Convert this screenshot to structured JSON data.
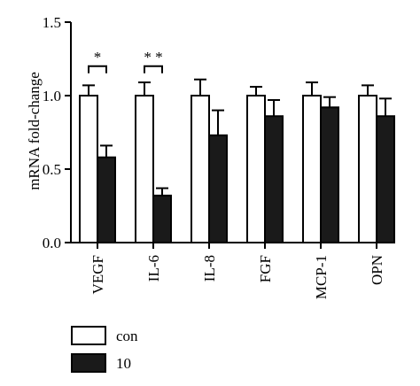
{
  "chart_data": {
    "type": "bar",
    "categories": [
      "VEGF",
      "IL-6",
      "IL-8",
      "FGF",
      "MCP-1",
      "OPN"
    ],
    "series": [
      {
        "name": "con",
        "color": "#ffffff",
        "values": [
          1.0,
          1.0,
          1.0,
          1.0,
          1.0,
          1.0
        ],
        "errors": [
          0.07,
          0.09,
          0.11,
          0.06,
          0.09,
          0.07
        ]
      },
      {
        "name": "10",
        "color": "#1a1a1a",
        "values": [
          0.58,
          0.32,
          0.73,
          0.86,
          0.92,
          0.86
        ],
        "errors": [
          0.08,
          0.05,
          0.17,
          0.11,
          0.07,
          0.12
        ]
      }
    ],
    "ylabel": "mRNA fold-change",
    "xlabel": "",
    "ylim": [
      0,
      1.5
    ],
    "yticks": [
      "0.0",
      "0.5",
      "1.0",
      "1.5"
    ],
    "significance": [
      {
        "category_index": 0,
        "label": "*",
        "y": 1.2
      },
      {
        "category_index": 1,
        "label": "* *",
        "y": 1.2
      }
    ],
    "legend_position": "bottom-left",
    "grid": false
  }
}
